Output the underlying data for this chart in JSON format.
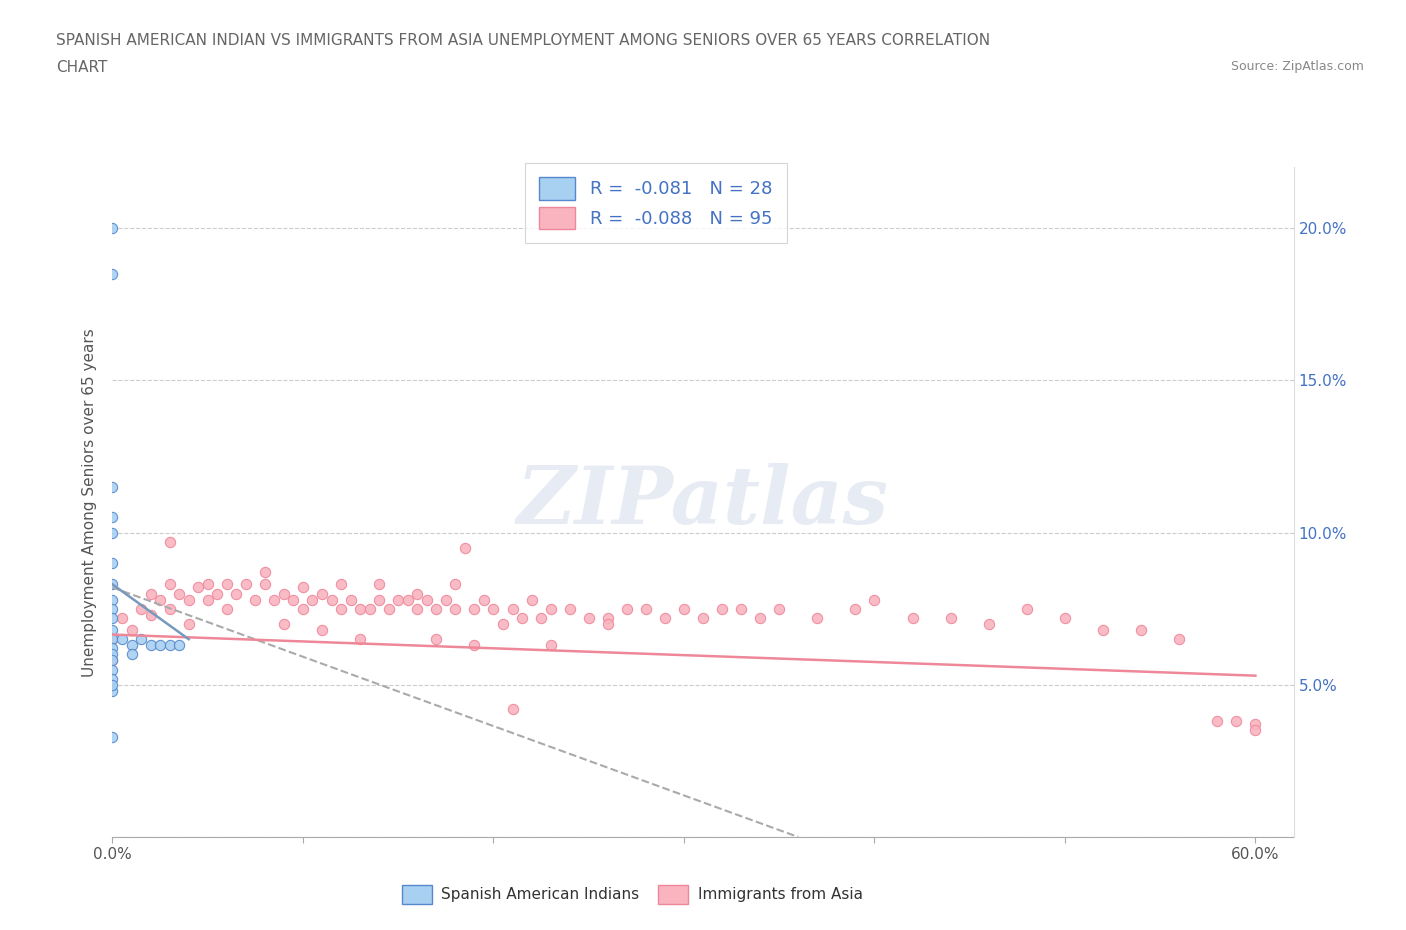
{
  "title_line1": "SPANISH AMERICAN INDIAN VS IMMIGRANTS FROM ASIA UNEMPLOYMENT AMONG SENIORS OVER 65 YEARS CORRELATION",
  "title_line2": "CHART",
  "source": "Source: ZipAtlas.com",
  "ylabel": "Unemployment Among Seniors over 65 years",
  "xlim": [
    0.0,
    0.62
  ],
  "ylim": [
    0.0,
    0.22
  ],
  "x_tick_pos": [
    0.0,
    0.1,
    0.2,
    0.3,
    0.4,
    0.5,
    0.6
  ],
  "x_tick_labels": [
    "0.0%",
    "",
    "",
    "",
    "",
    "",
    "60.0%"
  ],
  "y_tick_pos": [
    0.0,
    0.05,
    0.1,
    0.15,
    0.2
  ],
  "y_tick_labels": [
    "",
    "5.0%",
    "10.0%",
    "15.0%",
    "20.0%"
  ],
  "color_blue": "#a8d0f0",
  "color_pink": "#f9b4c0",
  "edge_blue": "#5588cc",
  "edge_pink": "#ee8899",
  "trendline_blue_color": "#7799bb",
  "trendline_pink_color": "#ee8899",
  "watermark": "ZIPatlas",
  "legend_r1": "R =  -0.081   N = 28",
  "legend_r2": "R =  -0.088   N = 95",
  "blue_points_x": [
    0.0,
    0.0,
    0.0,
    0.0,
    0.0,
    0.0,
    0.0,
    0.0,
    0.0,
    0.0,
    0.0,
    0.0,
    0.0,
    0.0,
    0.0,
    0.0,
    0.0,
    0.0,
    0.0,
    0.005,
    0.01,
    0.01,
    0.015,
    0.02,
    0.025,
    0.03,
    0.035,
    0.0
  ],
  "blue_points_y": [
    0.2,
    0.185,
    0.115,
    0.105,
    0.1,
    0.09,
    0.083,
    0.078,
    0.075,
    0.072,
    0.068,
    0.065,
    0.062,
    0.06,
    0.058,
    0.055,
    0.052,
    0.048,
    0.05,
    0.065,
    0.063,
    0.06,
    0.065,
    0.063,
    0.063,
    0.063,
    0.063,
    0.033
  ],
  "pink_points_x": [
    0.0,
    0.0,
    0.005,
    0.01,
    0.015,
    0.02,
    0.02,
    0.025,
    0.03,
    0.03,
    0.035,
    0.04,
    0.04,
    0.045,
    0.05,
    0.055,
    0.06,
    0.06,
    0.065,
    0.07,
    0.075,
    0.08,
    0.085,
    0.09,
    0.095,
    0.1,
    0.105,
    0.11,
    0.115,
    0.12,
    0.125,
    0.13,
    0.135,
    0.14,
    0.145,
    0.15,
    0.155,
    0.16,
    0.165,
    0.17,
    0.175,
    0.18,
    0.185,
    0.19,
    0.195,
    0.2,
    0.205,
    0.21,
    0.215,
    0.22,
    0.225,
    0.23,
    0.24,
    0.25,
    0.26,
    0.27,
    0.28,
    0.29,
    0.3,
    0.31,
    0.32,
    0.33,
    0.34,
    0.35,
    0.37,
    0.39,
    0.4,
    0.42,
    0.44,
    0.46,
    0.48,
    0.5,
    0.52,
    0.54,
    0.56,
    0.58,
    0.59,
    0.6,
    0.6,
    0.05,
    0.08,
    0.1,
    0.12,
    0.14,
    0.16,
    0.18,
    0.21,
    0.23,
    0.26,
    0.03,
    0.09,
    0.11,
    0.13,
    0.17,
    0.19
  ],
  "pink_points_y": [
    0.065,
    0.058,
    0.072,
    0.068,
    0.075,
    0.08,
    0.073,
    0.078,
    0.083,
    0.075,
    0.08,
    0.078,
    0.07,
    0.082,
    0.078,
    0.08,
    0.083,
    0.075,
    0.08,
    0.083,
    0.078,
    0.083,
    0.078,
    0.08,
    0.078,
    0.075,
    0.078,
    0.08,
    0.078,
    0.075,
    0.078,
    0.075,
    0.075,
    0.078,
    0.075,
    0.078,
    0.078,
    0.075,
    0.078,
    0.075,
    0.078,
    0.075,
    0.095,
    0.075,
    0.078,
    0.075,
    0.07,
    0.075,
    0.072,
    0.078,
    0.072,
    0.075,
    0.075,
    0.072,
    0.072,
    0.075,
    0.075,
    0.072,
    0.075,
    0.072,
    0.075,
    0.075,
    0.072,
    0.075,
    0.072,
    0.075,
    0.078,
    0.072,
    0.072,
    0.07,
    0.075,
    0.072,
    0.068,
    0.068,
    0.065,
    0.038,
    0.038,
    0.037,
    0.035,
    0.083,
    0.087,
    0.082,
    0.083,
    0.083,
    0.08,
    0.083,
    0.042,
    0.063,
    0.07,
    0.097,
    0.07,
    0.068,
    0.065,
    0.065,
    0.063
  ]
}
